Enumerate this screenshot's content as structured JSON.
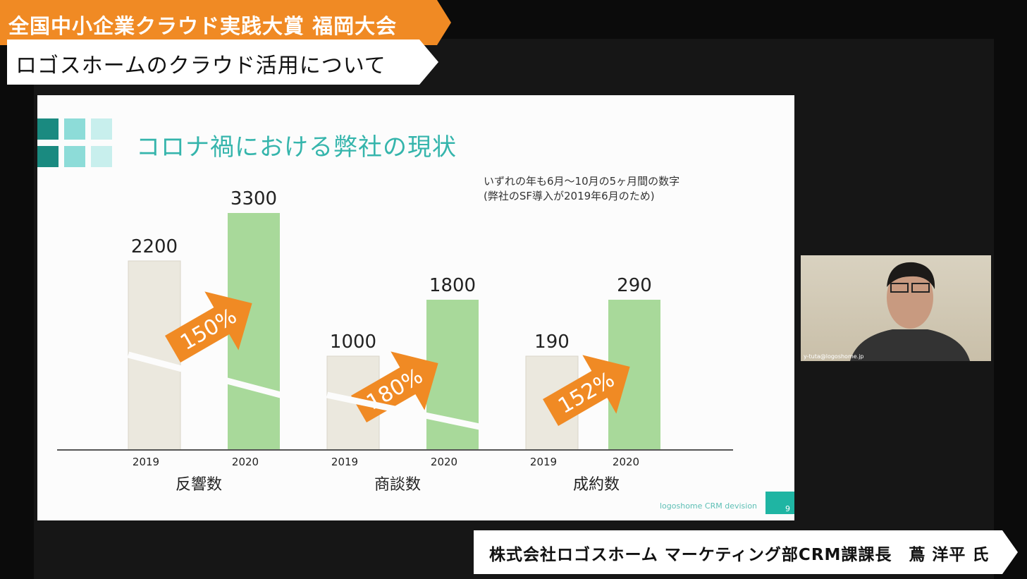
{
  "overlay": {
    "event_title": "全国中小企業クラウド実践大賞 福岡大会",
    "topic": "ロゴスホームのクラウド活用について",
    "speaker": "株式会社ロゴスホーム マーケティング部CRM課課長　蔦 洋平 氏"
  },
  "slide": {
    "title": "コロナ禍における弊社の現状",
    "note_line1": "いずれの年も6月～10月の5ヶ月間の数字",
    "note_line2": "(弊社のSF導入が2019年6月のため)",
    "footer": "logoshome CRM devision",
    "page": "9",
    "colors": {
      "accent": "#35b5ac",
      "bar_2019": "#ebe8de",
      "bar_2020": "#a8d99a",
      "arrow": "#f08a24"
    }
  },
  "video": {
    "user_label": "y-tuta@logoshome.jp"
  },
  "chart_data": {
    "type": "bar",
    "axis_break": true,
    "groups": [
      {
        "label": "反響数",
        "categories": [
          "2019",
          "2020"
        ],
        "values": [
          2200,
          3300
        ],
        "growth": "150%"
      },
      {
        "label": "商談数",
        "categories": [
          "2019",
          "2020"
        ],
        "values": [
          1000,
          1800
        ],
        "growth": "180%"
      },
      {
        "label": "成約数",
        "categories": [
          "2019",
          "2020"
        ],
        "values": [
          190,
          290
        ],
        "growth": "152%"
      }
    ]
  }
}
